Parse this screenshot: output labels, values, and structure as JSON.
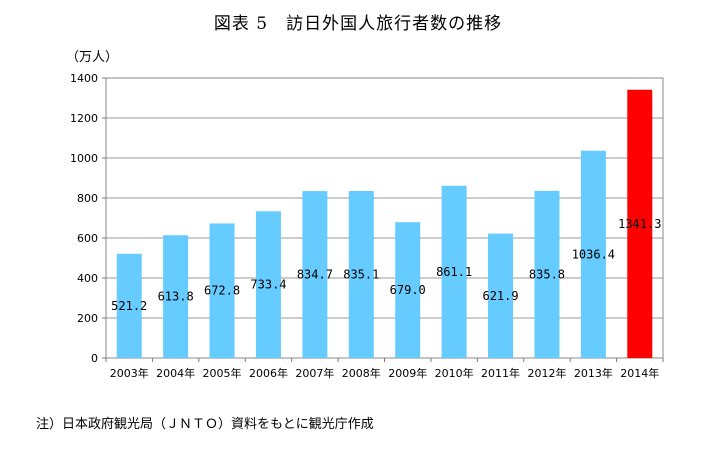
{
  "chart_data": {
    "type": "bar",
    "title": "図表 5　訪日外国人旅行者数の推移",
    "ylabel": "（万人）",
    "xlabel": "",
    "categories": [
      "2003年",
      "2004年",
      "2005年",
      "2006年",
      "2007年",
      "2008年",
      "2009年",
      "2010年",
      "2011年",
      "2012年",
      "2013年",
      "2014年"
    ],
    "values": [
      521.2,
      613.8,
      672.8,
      733.4,
      834.7,
      835.1,
      679.0,
      861.1,
      621.9,
      835.8,
      1036.4,
      1341.3
    ],
    "data_labels": [
      "521.2",
      "613.8",
      "672.8",
      "733.4",
      "834.7",
      "835.1",
      "679.0",
      "861.1",
      "621.9",
      "835.8",
      "1036.4",
      "1341.3"
    ],
    "ylim": [
      0,
      1400
    ],
    "yticks": [
      0,
      200,
      400,
      600,
      800,
      1000,
      1200,
      1400
    ],
    "grid": true,
    "colors": {
      "bar": "#66ccff",
      "highlight": "#ff0000"
    },
    "highlight_index": 11
  },
  "note": "注）日本政府観光局（ＪＮＴＯ）資料をもとに観光庁作成"
}
